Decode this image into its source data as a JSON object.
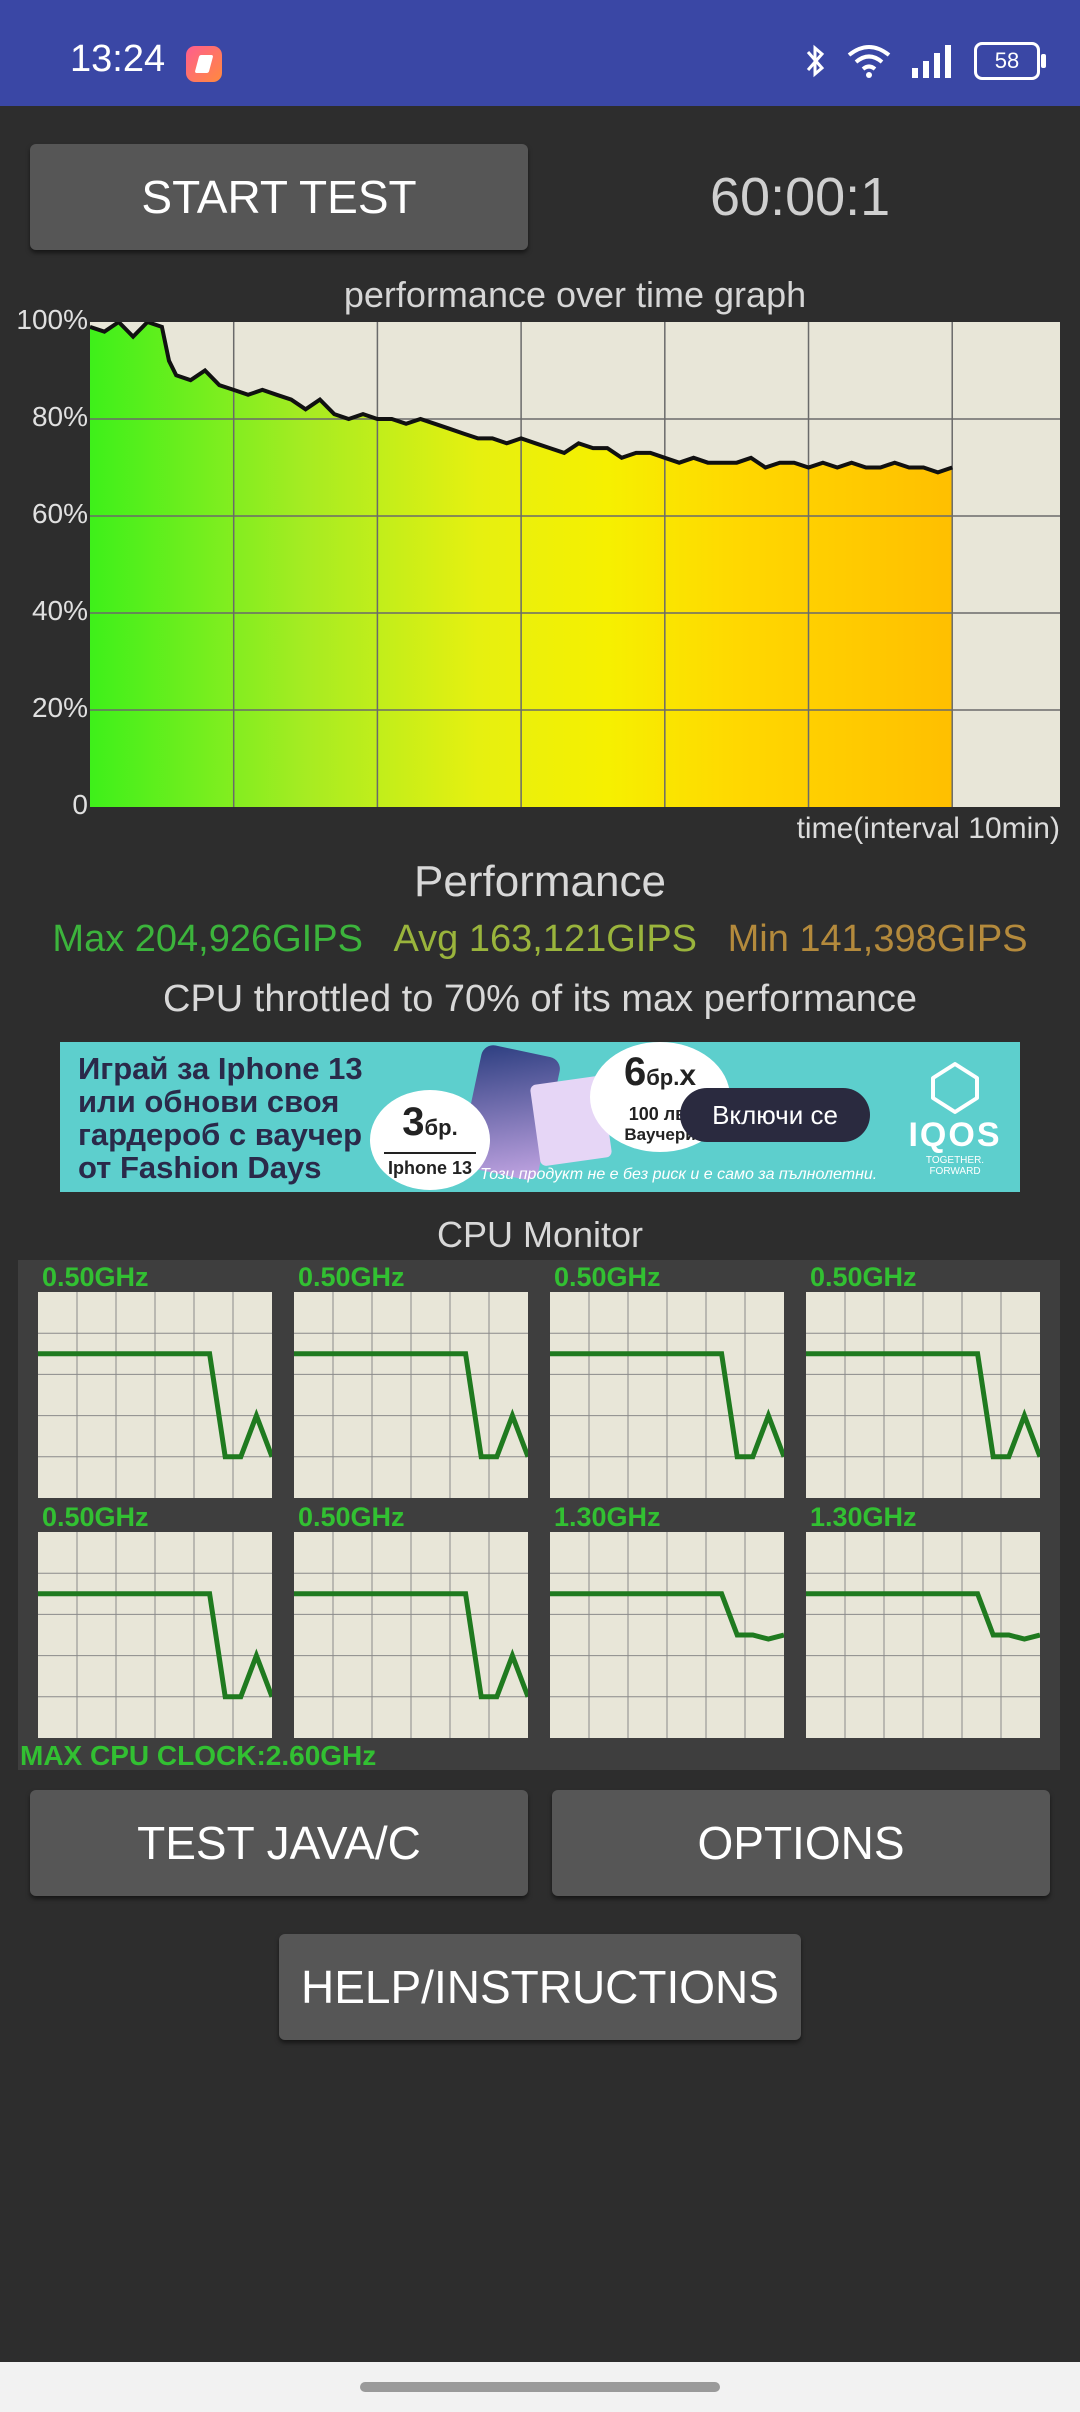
{
  "status_bar": {
    "time": "13:24",
    "battery": "58",
    "icons": [
      "bluetooth-icon",
      "wifi-icon",
      "signal-icon",
      "battery-icon"
    ]
  },
  "controls": {
    "start_label": "START TEST",
    "timer": "60:00:1",
    "test_java_label": "TEST JAVA/C",
    "options_label": "OPTIONS",
    "help_label": "HELP/INSTRUCTIONS"
  },
  "graph": {
    "title": "performance over time graph",
    "y_ticks": [
      "100%",
      "80%",
      "60%",
      "40%",
      "20%",
      "0"
    ],
    "x_label": "time(interval 10min)"
  },
  "chart_data": {
    "type": "line",
    "title": "performance over time graph",
    "xlabel": "time(interval 10min)",
    "ylabel": "",
    "ylim": [
      0,
      100
    ],
    "xlim": [
      0,
      67.5
    ],
    "grid": true,
    "series": [
      {
        "values": [
          [
            0,
            99
          ],
          [
            1,
            98
          ],
          [
            2,
            100
          ],
          [
            3,
            97
          ],
          [
            4,
            100
          ],
          [
            5,
            99
          ],
          [
            5.5,
            92
          ],
          [
            6,
            89
          ],
          [
            7,
            88
          ],
          [
            8,
            90
          ],
          [
            9,
            87
          ],
          [
            10,
            86
          ],
          [
            11,
            85
          ],
          [
            12,
            86
          ],
          [
            13,
            85
          ],
          [
            14,
            84
          ],
          [
            15,
            82
          ],
          [
            16,
            84
          ],
          [
            17,
            81
          ],
          [
            18,
            80
          ],
          [
            19,
            81
          ],
          [
            20,
            80
          ],
          [
            21,
            80
          ],
          [
            22,
            79
          ],
          [
            23,
            80
          ],
          [
            24,
            79
          ],
          [
            25,
            78
          ],
          [
            26,
            77
          ],
          [
            27,
            76
          ],
          [
            28,
            76
          ],
          [
            29,
            75
          ],
          [
            30,
            76
          ],
          [
            31,
            75
          ],
          [
            32,
            74
          ],
          [
            33,
            73
          ],
          [
            34,
            75
          ],
          [
            35,
            74
          ],
          [
            36,
            74
          ],
          [
            37,
            72
          ],
          [
            38,
            73
          ],
          [
            39,
            73
          ],
          [
            40,
            72
          ],
          [
            41,
            71
          ],
          [
            42,
            72
          ],
          [
            43,
            71
          ],
          [
            44,
            71
          ],
          [
            45,
            71
          ],
          [
            46,
            72
          ],
          [
            47,
            70
          ],
          [
            48,
            71
          ],
          [
            49,
            71
          ],
          [
            50,
            70
          ],
          [
            51,
            71
          ],
          [
            52,
            70
          ],
          [
            53,
            71
          ],
          [
            54,
            70
          ],
          [
            55,
            70
          ],
          [
            56,
            71
          ],
          [
            57,
            70
          ],
          [
            58,
            70
          ],
          [
            59,
            69
          ],
          [
            60,
            70
          ]
        ]
      }
    ]
  },
  "performance": {
    "title": "Performance",
    "max": "Max 204,926GIPS",
    "avg": "Avg 163,121GIPS",
    "min": "Min 141,398GIPS",
    "throttle": "CPU throttled to 70% of its max performance",
    "colors": {
      "max": "#3cb43c",
      "avg": "#9ab43c",
      "min": "#b48a3c"
    }
  },
  "ad": {
    "line1": "Играй за Iphone 13",
    "line2": "или обнови своя",
    "line3": "гардероб с ваучер",
    "line4": "от Fashion Days",
    "badge3_big": "3",
    "badge3_unit": "бр.",
    "badge3_sub": "Iphone 13",
    "badge6_big": "6",
    "badge6_unit": "бр.",
    "badge6_x": "x",
    "badge6_amount": "100 лв.",
    "badge6_sub": "Ваучери",
    "cta": "Включи се",
    "logo": "IQOS",
    "tagline": "TOGETHER. FORWARD",
    "disclaimer": "Този продукт не е без риск и е само за пълнолетни."
  },
  "cpu_monitor": {
    "title": "CPU Monitor",
    "max_clock": "MAX CPU CLOCK:2.60GHz",
    "cores": [
      {
        "freq": "0.50GHz",
        "values": [
          70,
          70,
          70,
          70,
          70,
          70,
          70,
          70,
          70,
          70,
          70,
          70,
          20,
          20,
          40,
          20
        ]
      },
      {
        "freq": "0.50GHz",
        "values": [
          70,
          70,
          70,
          70,
          70,
          70,
          70,
          70,
          70,
          70,
          70,
          70,
          20,
          20,
          40,
          20
        ]
      },
      {
        "freq": "0.50GHz",
        "values": [
          70,
          70,
          70,
          70,
          70,
          70,
          70,
          70,
          70,
          70,
          70,
          70,
          20,
          20,
          40,
          20
        ]
      },
      {
        "freq": "0.50GHz",
        "values": [
          70,
          70,
          70,
          70,
          70,
          70,
          70,
          70,
          70,
          70,
          70,
          70,
          20,
          20,
          40,
          20
        ]
      },
      {
        "freq": "0.50GHz",
        "values": [
          70,
          70,
          70,
          70,
          70,
          70,
          70,
          70,
          70,
          70,
          70,
          70,
          20,
          20,
          40,
          20
        ]
      },
      {
        "freq": "0.50GHz",
        "values": [
          70,
          70,
          70,
          70,
          70,
          70,
          70,
          70,
          70,
          70,
          70,
          70,
          20,
          20,
          40,
          20
        ]
      },
      {
        "freq": "1.30GHz",
        "values": [
          70,
          70,
          70,
          70,
          70,
          70,
          70,
          70,
          70,
          70,
          70,
          70,
          50,
          50,
          48,
          50
        ]
      },
      {
        "freq": "1.30GHz",
        "values": [
          70,
          70,
          70,
          70,
          70,
          70,
          70,
          70,
          70,
          70,
          70,
          70,
          50,
          50,
          48,
          50
        ]
      }
    ]
  }
}
